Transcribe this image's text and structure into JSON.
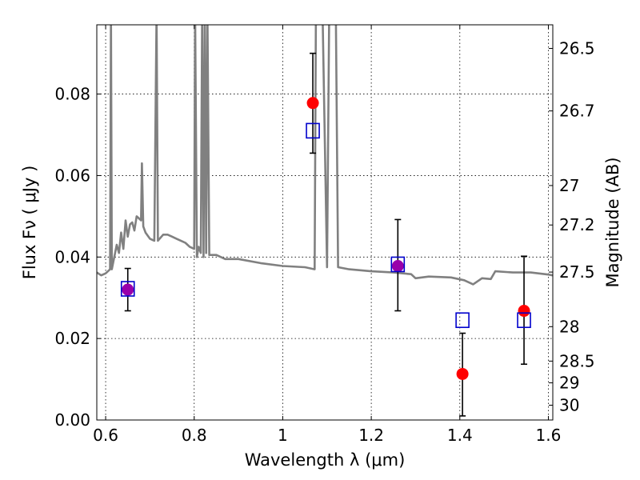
{
  "chart_data": {
    "type": "scatter",
    "title": "",
    "xlabel": "Wavelength  λ (μm)",
    "ylabel": "Flux  Fν  ( μJy )",
    "ylabel_right": "Magnitude (AB)",
    "xlim": [
      0.58,
      1.61
    ],
    "ylim": [
      0.0,
      0.097
    ],
    "grid": true,
    "x_ticks": [
      {
        "value": 0.6,
        "label": "0.6"
      },
      {
        "value": 0.8,
        "label": "0.8"
      },
      {
        "value": 1.0,
        "label": "1"
      },
      {
        "value": 1.2,
        "label": "1.2"
      },
      {
        "value": 1.4,
        "label": "1.4"
      },
      {
        "value": 1.6,
        "label": "1.6"
      }
    ],
    "y_ticks": [
      {
        "value": 0.0,
        "label": "0.00"
      },
      {
        "value": 0.02,
        "label": "0.02"
      },
      {
        "value": 0.04,
        "label": "0.04"
      },
      {
        "value": 0.06,
        "label": "0.06"
      },
      {
        "value": 0.08,
        "label": "0.08"
      }
    ],
    "right_ticks": [
      {
        "value": 26.5,
        "label": "26.5"
      },
      {
        "value": 26.7,
        "label": "26.7"
      },
      {
        "value": 27.0,
        "label": "27"
      },
      {
        "value": 27.2,
        "label": "27.2"
      },
      {
        "value": 27.5,
        "label": "27.5"
      },
      {
        "value": 28.0,
        "label": "28"
      },
      {
        "value": 28.5,
        "label": "28.5"
      },
      {
        "value": 29.0,
        "label": "29"
      },
      {
        "value": 30.0,
        "label": "30"
      }
    ],
    "series": [
      {
        "kind": "model_spectrum",
        "color": "#808080",
        "points": [
          [
            0.58,
            0.0362
          ],
          [
            0.59,
            0.0355
          ],
          [
            0.6,
            0.036
          ],
          [
            0.61,
            0.037
          ],
          [
            0.612,
            0.1
          ],
          [
            0.614,
            0.037
          ],
          [
            0.625,
            0.043
          ],
          [
            0.63,
            0.041
          ],
          [
            0.635,
            0.046
          ],
          [
            0.64,
            0.042
          ],
          [
            0.645,
            0.049
          ],
          [
            0.65,
            0.045
          ],
          [
            0.655,
            0.048
          ],
          [
            0.66,
            0.0485
          ],
          [
            0.665,
            0.0465
          ],
          [
            0.67,
            0.05
          ],
          [
            0.675,
            0.0495
          ],
          [
            0.68,
            0.049
          ],
          [
            0.682,
            0.063
          ],
          [
            0.685,
            0.0475
          ],
          [
            0.69,
            0.046
          ],
          [
            0.7,
            0.0445
          ],
          [
            0.71,
            0.044
          ],
          [
            0.715,
            0.1
          ],
          [
            0.718,
            0.044
          ],
          [
            0.73,
            0.0455
          ],
          [
            0.74,
            0.0455
          ],
          [
            0.75,
            0.045
          ],
          [
            0.76,
            0.0445
          ],
          [
            0.77,
            0.044
          ],
          [
            0.78,
            0.0435
          ],
          [
            0.79,
            0.0425
          ],
          [
            0.8,
            0.042
          ],
          [
            0.802,
            0.1
          ],
          [
            0.806,
            0.04
          ],
          [
            0.81,
            0.0425
          ],
          [
            0.815,
            0.041
          ],
          [
            0.818,
            0.1
          ],
          [
            0.821,
            0.04
          ],
          [
            0.824,
            0.1
          ],
          [
            0.827,
            0.041
          ],
          [
            0.83,
            0.1
          ],
          [
            0.834,
            0.0405
          ],
          [
            0.85,
            0.0405
          ],
          [
            0.87,
            0.0395
          ],
          [
            0.9,
            0.0395
          ],
          [
            0.95,
            0.0385
          ],
          [
            1.0,
            0.0378
          ],
          [
            1.05,
            0.0375
          ],
          [
            1.072,
            0.037
          ],
          [
            1.075,
            0.1
          ],
          [
            1.09,
            0.1
          ],
          [
            1.1,
            0.0375
          ],
          [
            1.105,
            0.1
          ],
          [
            1.12,
            0.1
          ],
          [
            1.125,
            0.0375
          ],
          [
            1.15,
            0.037
          ],
          [
            1.2,
            0.0365
          ],
          [
            1.25,
            0.0362
          ],
          [
            1.29,
            0.0358
          ],
          [
            1.3,
            0.0348
          ],
          [
            1.33,
            0.0352
          ],
          [
            1.38,
            0.035
          ],
          [
            1.41,
            0.0343
          ],
          [
            1.43,
            0.0333
          ],
          [
            1.45,
            0.0348
          ],
          [
            1.47,
            0.0346
          ],
          [
            1.48,
            0.0365
          ],
          [
            1.52,
            0.0362
          ],
          [
            1.56,
            0.0362
          ],
          [
            1.6,
            0.0357
          ],
          [
            1.61,
            0.0355
          ]
        ]
      },
      {
        "kind": "observed",
        "marker": "filled-circle",
        "color": "#ff0000",
        "points": [
          {
            "x": 0.65,
            "y": 0.032,
            "yerr_low": 0.0268,
            "yerr_high": 0.0372
          },
          {
            "x": 1.068,
            "y": 0.0778,
            "yerr_low": 0.0655,
            "yerr_high": 0.09
          },
          {
            "x": 1.26,
            "y": 0.0378,
            "yerr_low": 0.0268,
            "yerr_high": 0.0492
          },
          {
            "x": 1.406,
            "y": 0.0113,
            "yerr_low": 0.001,
            "yerr_high": 0.0213
          },
          {
            "x": 1.545,
            "y": 0.0268,
            "yerr_low": 0.0137,
            "yerr_high": 0.0402
          }
        ]
      },
      {
        "kind": "model_photometry",
        "marker": "open-square",
        "color": "#0000cc",
        "points": [
          {
            "x": 0.65,
            "y": 0.0322
          },
          {
            "x": 1.068,
            "y": 0.071
          },
          {
            "x": 1.26,
            "y": 0.0382
          },
          {
            "x": 1.406,
            "y": 0.0245
          },
          {
            "x": 1.545,
            "y": 0.0245
          }
        ]
      }
    ],
    "overlap_color": "#9900aa"
  }
}
